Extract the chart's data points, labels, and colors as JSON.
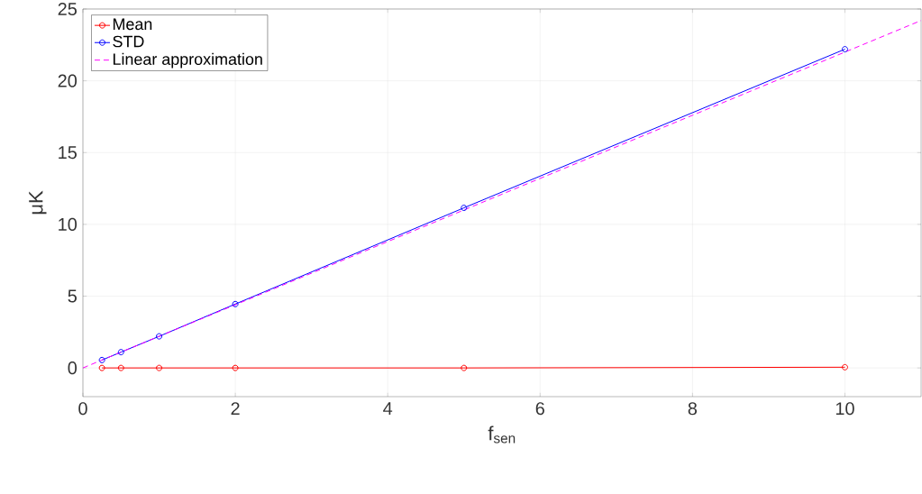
{
  "chart_data": {
    "type": "line",
    "xlabel": "f$_{sen}$",
    "ylabel": "μK",
    "series": [
      {
        "name": "Mean",
        "color": "#ff0000",
        "marker": "circle",
        "line_style": "solid",
        "x": [
          0.25,
          0.5,
          1,
          2,
          5,
          10
        ],
        "values": [
          0,
          0,
          0,
          0,
          0,
          0.05
        ]
      },
      {
        "name": "STD",
        "color": "#0000ff",
        "marker": "circle",
        "line_style": "solid",
        "x": [
          0.25,
          0.5,
          1,
          2,
          5,
          10
        ],
        "values": [
          0.55,
          1.1,
          2.2,
          4.45,
          11.15,
          22.2
        ]
      },
      {
        "name": "Linear approximation",
        "color": "#ff00ff",
        "marker": "none",
        "line_style": "dashed",
        "x": [
          0,
          11
        ],
        "values": [
          0,
          24.2
        ]
      }
    ],
    "xlim": [
      0,
      11
    ],
    "ylim": [
      -2,
      25
    ],
    "xticks": [
      0,
      2,
      4,
      6,
      8,
      10
    ],
    "yticks": [
      0,
      5,
      10,
      15,
      20,
      25
    ],
    "grid": true,
    "legend": "top left"
  }
}
